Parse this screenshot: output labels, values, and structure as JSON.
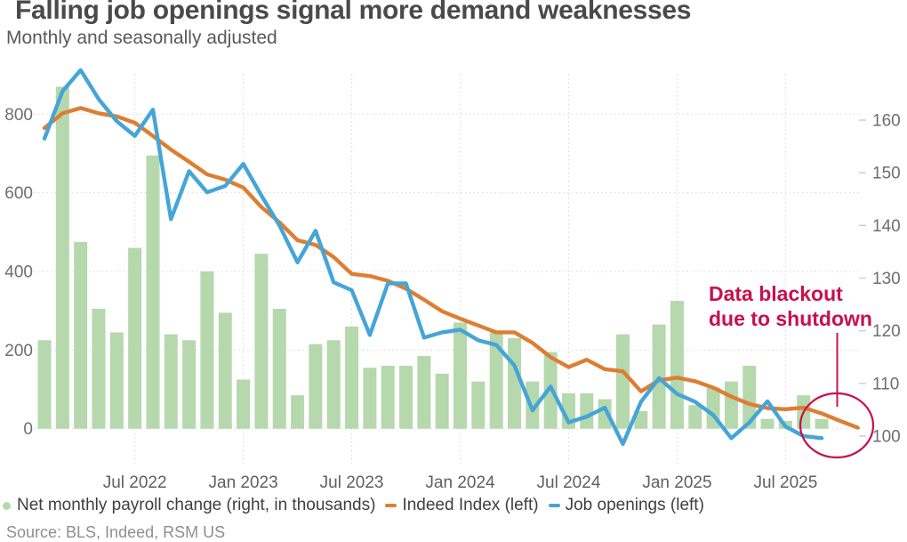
{
  "header": {
    "title": "Falling job openings signal more demand weaknesses",
    "subtitle": "Monthly and seasonally adjusted"
  },
  "source": "Source: BLS, Indeed, RSM US",
  "chart_data": {
    "type": "mixed",
    "grid": true,
    "legend_position": "bottom",
    "x": [
      "Feb 2022",
      "Mar 2022",
      "Apr 2022",
      "May 2022",
      "Jun 2022",
      "Jul 2022",
      "Aug 2022",
      "Sep 2022",
      "Oct 2022",
      "Nov 2022",
      "Dec 2022",
      "Jan 2023",
      "Feb 2023",
      "Mar 2023",
      "Apr 2023",
      "May 2023",
      "Jun 2023",
      "Jul 2023",
      "Aug 2023",
      "Sep 2023",
      "Oct 2023",
      "Nov 2023",
      "Dec 2023",
      "Jan 2024",
      "Feb 2024",
      "Mar 2024",
      "Apr 2024",
      "May 2024",
      "Jun 2024",
      "Jul 2024",
      "Aug 2024",
      "Sep 2024",
      "Oct 2024",
      "Nov 2024",
      "Dec 2024",
      "Jan 2025",
      "Feb 2025",
      "Mar 2025",
      "Apr 2025",
      "May 2025",
      "Jun 2025",
      "Jul 2025",
      "Aug 2025",
      "Sep 2025",
      "Oct 2025",
      "Nov 2025"
    ],
    "x_axis_ticks": [
      "Jul 2022",
      "Jan 2023",
      "Jul 2023",
      "Jan 2024",
      "Jul 2024",
      "Jan 2025",
      "Jul 2025"
    ],
    "left_axis": {
      "ticks": [
        0,
        200,
        400,
        600,
        800
      ],
      "range": [
        0,
        900
      ]
    },
    "right_axis": {
      "ticks": [
        100,
        110,
        120,
        130,
        140,
        150,
        160
      ],
      "range": [
        98,
        168
      ]
    },
    "series": [
      {
        "name": "Net monthly payroll change (right, in thousands)",
        "type": "bar",
        "plotted_on": "left_0_800_scale",
        "color": "#b5d8ad",
        "values": [
          225,
          870,
          475,
          305,
          245,
          460,
          695,
          240,
          225,
          400,
          295,
          125,
          445,
          305,
          85,
          215,
          225,
          260,
          155,
          160,
          160,
          185,
          140,
          270,
          120,
          245,
          230,
          120,
          195,
          90,
          90,
          75,
          240,
          45,
          265,
          325,
          60,
          105,
          120,
          160,
          25,
          20,
          85,
          25,
          null,
          null
        ]
      },
      {
        "name": "Indeed Index (left)",
        "type": "line",
        "plotted_on": "right_100_160_scale",
        "color": "#dd7e32",
        "values": [
          158.5,
          161.3,
          162.3,
          161.3,
          160.7,
          159.5,
          157,
          154.4,
          152.1,
          149.7,
          148.7,
          147.2,
          143.5,
          140.6,
          137.2,
          136.3,
          134,
          130.8,
          130.4,
          129.5,
          128,
          125.9,
          123.7,
          122.3,
          121,
          119.7,
          119.7,
          117.7,
          115,
          113.1,
          114.5,
          112.7,
          112.3,
          108.5,
          110.6,
          111.1,
          110.4,
          109.2,
          107.5,
          106.1,
          105.3,
          105.1,
          105.4,
          104.3,
          102.9,
          101.6
        ]
      },
      {
        "name": "Job openings (left)",
        "type": "line",
        "plotted_on": "right_100_160_scale",
        "color": "#45a5d6",
        "values": [
          156.5,
          165.5,
          169.5,
          164,
          159.8,
          157,
          162,
          141.2,
          150.3,
          146.3,
          147.5,
          151.7,
          145.7,
          140,
          133,
          139,
          129.2,
          127.7,
          119.2,
          129,
          129,
          118.7,
          119.7,
          120.2,
          118.2,
          117.3,
          113.4,
          104.9,
          109.4,
          102.6,
          103.7,
          105.4,
          98.5,
          106.5,
          111,
          108,
          106.5,
          104,
          99.6,
          102.6,
          106.6,
          101.8,
          100,
          99.6,
          null,
          null
        ]
      }
    ],
    "annotation": {
      "line1": "Data blackout",
      "line2": "due to shutdown",
      "color": "#c8104c"
    }
  }
}
